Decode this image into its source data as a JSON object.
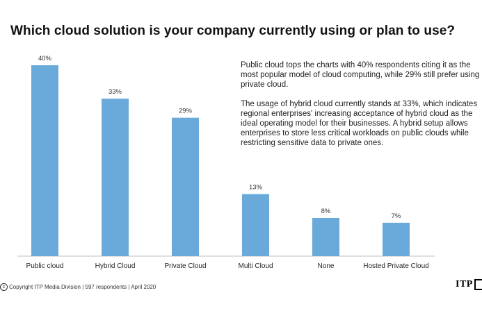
{
  "title": "Which cloud solution is your company currently using or plan to use?",
  "notes": {
    "p1": "Public cloud tops the charts with 40% respondents citing it as the most popular model of cloud computing, while 29% still prefer using private cloud.",
    "p2": "The usage of hybrid cloud currently stands at 33%, which indicates regional enterprises' increasing acceptance of hybrid cloud as the ideal operating model for their businesses. A hybrid setup allows enterprises to store less critical workloads on public clouds while restricting sensitive data to private ones."
  },
  "footer": {
    "copyright_symbol": "c",
    "text": "Copyright ITP Media Division | 597 respondents | April 2020"
  },
  "logo": {
    "text": "ITP"
  },
  "chart_data": {
    "type": "bar",
    "title": "",
    "xlabel": "",
    "ylabel": "",
    "categories": [
      "Public cloud",
      "Hybrid Cloud",
      "Private Cloud",
      "Multi Cloud",
      "None",
      "Hosted Private Cloud"
    ],
    "values": [
      40,
      33,
      29,
      13,
      8,
      7
    ],
    "value_labels": [
      "40%",
      "33%",
      "29%",
      "13%",
      "8%",
      "7%"
    ],
    "unit": "%",
    "ylim": [
      0,
      40
    ],
    "grid": false,
    "bar_color": "#6aaadb",
    "axis_color": "#bfbfbf"
  }
}
